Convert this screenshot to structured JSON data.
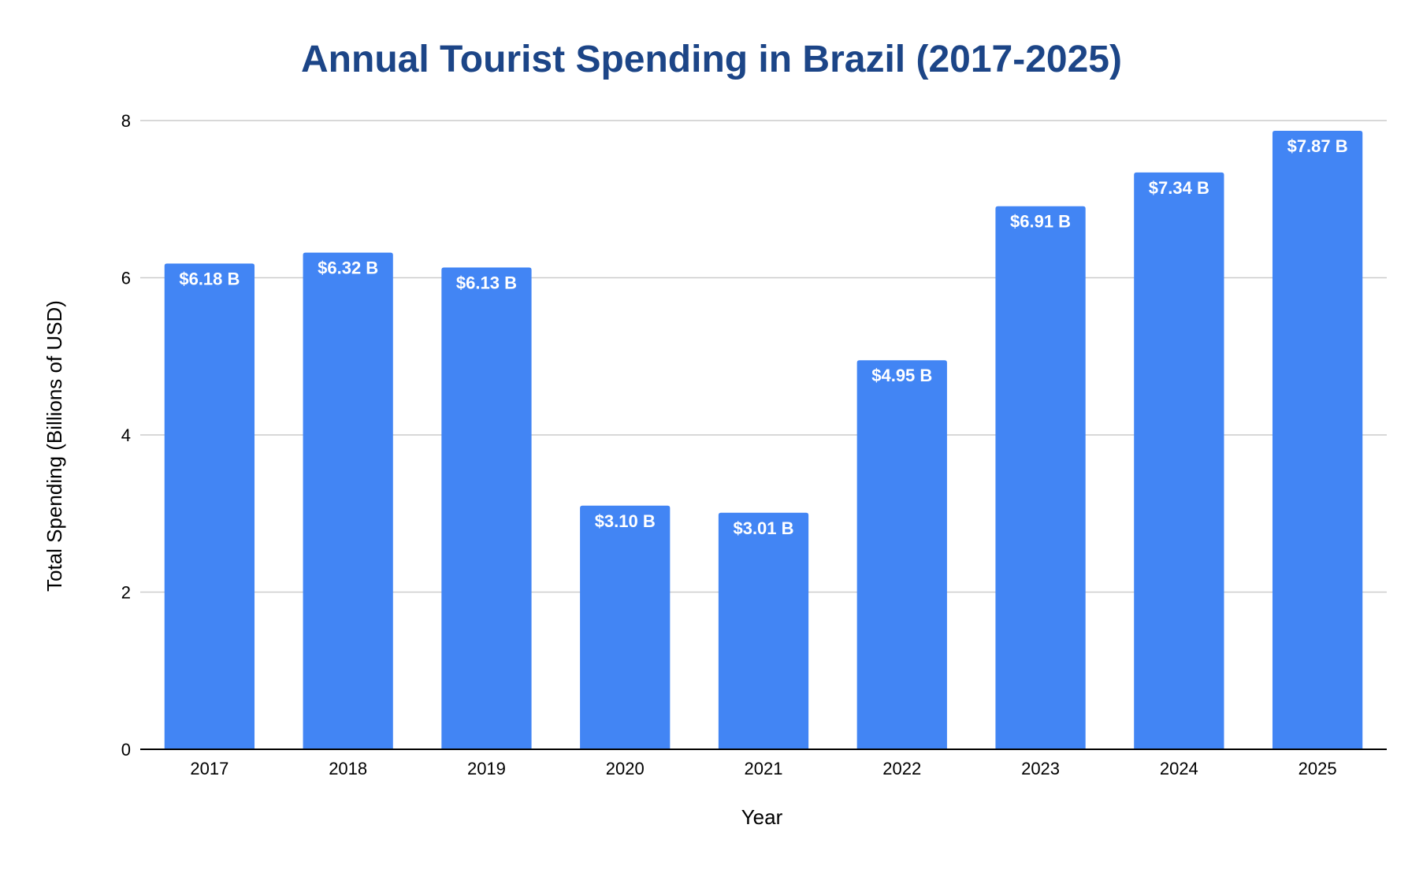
{
  "chart_data": {
    "type": "bar",
    "title": "Annual Tourist Spending in Brazil (2017-2025)",
    "xlabel": "Year",
    "ylabel": "Total Spending (Billions of USD)",
    "categories": [
      "2017",
      "2018",
      "2019",
      "2020",
      "2021",
      "2022",
      "2023",
      "2024",
      "2025"
    ],
    "values": [
      6.18,
      6.32,
      6.13,
      3.1,
      3.01,
      4.95,
      6.91,
      7.34,
      7.87
    ],
    "data_labels": [
      "$6.18 B",
      "$6.32 B",
      "$6.13 B",
      "$3.10 B",
      "$3.01 B",
      "$4.95 B",
      "$6.91 B",
      "$7.34 B",
      "$7.87 B"
    ],
    "ylim": [
      0,
      8
    ],
    "yticks": [
      0,
      2,
      4,
      6,
      8
    ],
    "ytick_labels": [
      "0",
      "2",
      "4",
      "6",
      "8"
    ],
    "grid": true,
    "bar_color": "#4285f4",
    "title_color": "#1c4587"
  }
}
